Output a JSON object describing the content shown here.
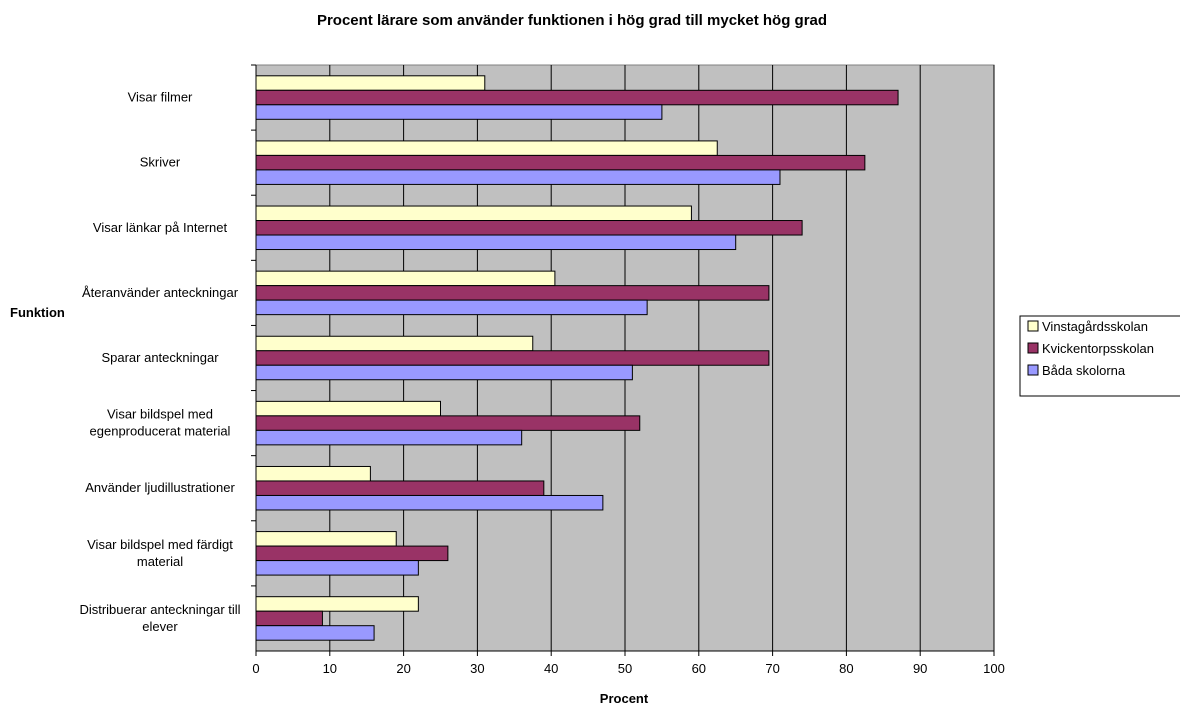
{
  "chart_data": {
    "type": "bar",
    "orientation": "horizontal",
    "title": "Procent lärare som använder funktionen i hög grad till mycket hög grad",
    "xlabel": "Procent",
    "ylabel": "Funktion",
    "xlim": [
      0,
      100
    ],
    "xticks": [
      "0",
      "10",
      "20",
      "30",
      "40",
      "50",
      "60",
      "70",
      "80",
      "90",
      "100"
    ],
    "grid": true,
    "legend_position": "right",
    "categories": [
      [
        "Visar filmer"
      ],
      [
        "Skriver"
      ],
      [
        "Visar länkar på Internet"
      ],
      [
        "Återanvänder anteckningar"
      ],
      [
        "Sparar anteckningar"
      ],
      [
        "Visar bildspel med",
        "egenproducerat material"
      ],
      [
        "Använder ljudillustrationer"
      ],
      [
        "Visar bildspel med färdigt",
        "material"
      ],
      [
        "Distribuerar anteckningar till",
        "elever"
      ]
    ],
    "series": [
      {
        "name": "Vinstagårdsskolan",
        "color": "#ffffcc",
        "values": [
          31,
          62.5,
          59,
          40.5,
          37.5,
          25,
          15.5,
          19,
          22
        ]
      },
      {
        "name": "Kvickentorpsskolan",
        "color": "#993366",
        "values": [
          87,
          82.5,
          74,
          69.5,
          69.5,
          52,
          39,
          26,
          9
        ]
      },
      {
        "name": "Båda skolorna",
        "color": "#9999ff",
        "values": [
          55,
          71,
          65,
          53,
          51,
          36,
          47,
          22,
          16
        ]
      }
    ],
    "plot_background": "#c0c0c0"
  }
}
